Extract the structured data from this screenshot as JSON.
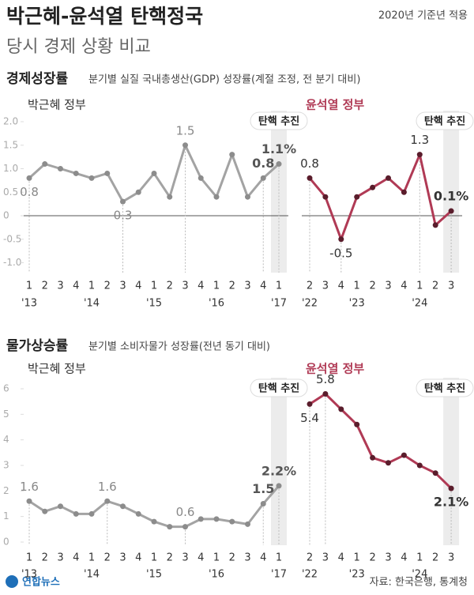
{
  "header": {
    "title": "박근혜-윤석열 탄핵정국",
    "subtitle": "당시 경제 상황 비교",
    "note": "2020년 기준년 적용"
  },
  "sections": [
    {
      "title": "경제성장률",
      "subtitle": "분기별 실질 국내총생산(GDP) 성장률(계절 조정, 전 분기 대비)"
    },
    {
      "title": "물가상승률",
      "subtitle": "분기별 소비자물가 성장률(전년 동기 대비)"
    }
  ],
  "chart_data": [
    {
      "type": "line",
      "title": "박근혜 정부",
      "title_color": "#333333",
      "annotation": "탄핵 추진",
      "categories": [
        "1",
        "2",
        "3",
        "4",
        "1",
        "2",
        "3",
        "4",
        "1",
        "2",
        "3",
        "4",
        "1",
        "2",
        "3",
        "4",
        "1"
      ],
      "years": [
        "'13",
        null,
        null,
        null,
        "'14",
        null,
        null,
        null,
        "'15",
        null,
        null,
        null,
        "'16",
        null,
        null,
        null,
        "'17"
      ],
      "values": [
        0.8,
        1.1,
        1.0,
        0.9,
        0.8,
        0.9,
        0.3,
        0.5,
        0.9,
        0.4,
        1.5,
        0.8,
        0.4,
        1.3,
        0.4,
        0.8,
        1.1
      ],
      "value_labels": [
        "0.8",
        null,
        null,
        null,
        null,
        null,
        "0.3",
        null,
        null,
        null,
        "1.5",
        null,
        null,
        null,
        null,
        "0.8",
        "1.1%"
      ],
      "color": "#a3a3a3",
      "marker_color": "#8c8c8c",
      "zero_line": true,
      "ylim": [
        -1.0,
        2.0
      ],
      "yticks": [
        {
          "value": -1.0,
          "label": "-1.0"
        },
        -0.5,
        0,
        0.5,
        {
          "value": 1.0,
          "label": "1.0"
        },
        1.5,
        {
          "value": 2.0,
          "label": "2.0"
        }
      ]
    },
    {
      "type": "line",
      "title": "윤석열 정부",
      "title_color": "#b03a55",
      "annotation": "탄핵 추진",
      "categories": [
        "2",
        "3",
        "4",
        "1",
        "2",
        "3",
        "4",
        "1",
        "2",
        "3"
      ],
      "years": [
        "'22",
        null,
        null,
        "'23",
        null,
        null,
        null,
        "'24",
        null,
        null
      ],
      "values": [
        0.8,
        0.4,
        -0.5,
        0.4,
        0.6,
        0.8,
        0.5,
        1.3,
        -0.2,
        0.1
      ],
      "value_labels": [
        "0.8",
        null,
        "-0.5",
        null,
        null,
        null,
        null,
        "1.3",
        null,
        "0.1%"
      ],
      "color": "#b03a55",
      "marker_color": "#5a1d2c",
      "zero_line": true,
      "ylim": [
        -1.0,
        2.0
      ]
    },
    {
      "type": "line",
      "title": "박근혜 정부",
      "title_color": "#333333",
      "annotation": "탄핵 추진",
      "categories": [
        "1",
        "2",
        "3",
        "4",
        "1",
        "2",
        "3",
        "4",
        "1",
        "2",
        "3",
        "4",
        "1",
        "2",
        "3",
        "4",
        "1"
      ],
      "years": [
        "'13",
        null,
        null,
        null,
        "'14",
        null,
        null,
        null,
        "'15",
        null,
        null,
        null,
        "'16",
        null,
        null,
        null,
        "'17"
      ],
      "values": [
        1.6,
        1.2,
        1.4,
        1.1,
        1.1,
        1.6,
        1.4,
        1.1,
        0.8,
        0.6,
        0.6,
        0.9,
        0.9,
        0.8,
        0.7,
        1.5,
        2.2
      ],
      "value_labels": [
        "1.6",
        null,
        null,
        null,
        null,
        "1.6",
        null,
        null,
        null,
        null,
        "0.6",
        null,
        null,
        null,
        null,
        "1.5",
        "2.2%"
      ],
      "color": "#a3a3a3",
      "marker_color": "#8c8c8c",
      "zero_line": false,
      "ylim": [
        0,
        6
      ],
      "yticks": [
        0,
        1,
        2,
        3,
        4,
        5,
        6
      ]
    },
    {
      "type": "line",
      "title": "윤석열 정부",
      "title_color": "#b03a55",
      "annotation": "탄핵 추진",
      "categories": [
        "2",
        "3",
        "4",
        "1",
        "2",
        "3",
        "4",
        "1",
        "2",
        "3"
      ],
      "years": [
        "'22",
        null,
        null,
        "'23",
        null,
        null,
        null,
        "'24",
        null,
        null
      ],
      "values": [
        5.4,
        5.8,
        5.2,
        4.6,
        3.3,
        3.1,
        3.4,
        3.0,
        2.7,
        2.1
      ],
      "value_labels": [
        "5.4",
        "5.8",
        null,
        null,
        null,
        null,
        null,
        null,
        null,
        "2.1%"
      ],
      "color": "#b03a55",
      "marker_color": "#5a1d2c",
      "zero_line": false,
      "ylim": [
        0,
        6
      ]
    }
  ],
  "footer": {
    "logo": "연합뉴스",
    "source": "자료: 한국은행, 통계청"
  }
}
